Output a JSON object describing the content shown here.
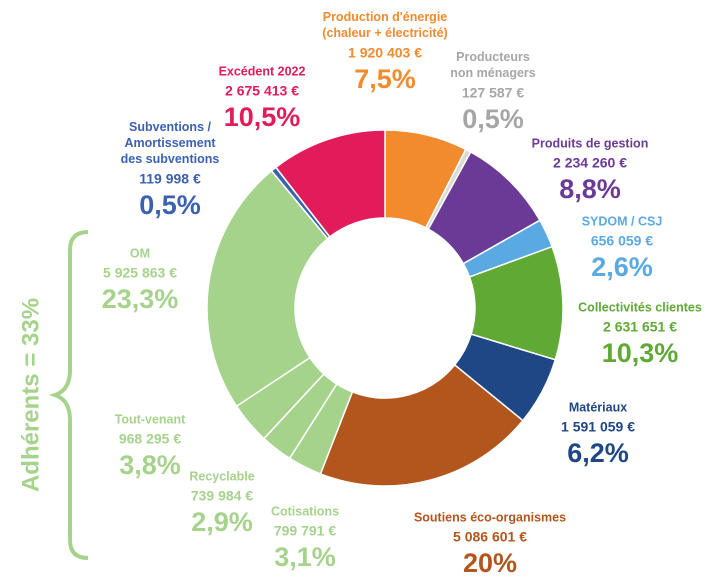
{
  "chart_data": {
    "type": "donut",
    "categories": [
      "Production d'énergie\n(chaleur + électricité)",
      "Producteurs\nnon ménagers",
      "Produits de gestion",
      "SYDOM / CSJ",
      "Collectivités clientes",
      "Matériaux",
      "Soutiens éco-organismes",
      "Cotisations",
      "Recyclable",
      "Tout-venant",
      "OM",
      "Subventions /\nAmortissement\ndes subventions",
      "Excédent 2022"
    ],
    "amounts": [
      "1 920 403 €",
      "127 587 €",
      "2 234 260 €",
      "656 059 €",
      "2 631 651 €",
      "1 591 059 €",
      "5 086 601 €",
      "799 791 €",
      "739 984 €",
      "968 295 €",
      "5 925 863 €",
      "119 998 €",
      "2 675 413 €"
    ],
    "values": [
      7.5,
      0.5,
      8.8,
      2.6,
      10.3,
      6.2,
      20,
      3.1,
      2.9,
      3.8,
      23.3,
      0.5,
      10.5
    ],
    "value_labels": [
      "7,5%",
      "0,5%",
      "8,8%",
      "2,6%",
      "10,3%",
      "6,2%",
      "20%",
      "3,1%",
      "2,9%",
      "3,8%",
      "23,3%",
      "0,5%",
      "10,5%"
    ],
    "colors": [
      "#f28a2e",
      "#d9d9d9",
      "#6b3a97",
      "#5aa9e2",
      "#5fa934",
      "#1f4785",
      "#b3561d",
      "#a6d38c",
      "#a6d38c",
      "#a6d38c",
      "#a6d38c",
      "#3a62b0",
      "#e21b5a"
    ],
    "label_colors": [
      "#f28a2e",
      "#a6a6a6",
      "#6b3a97",
      "#5aa9e2",
      "#5fa934",
      "#1f4785",
      "#b3561d",
      "#a6d38c",
      "#a6d38c",
      "#a6d38c",
      "#a6d38c",
      "#3a62b0",
      "#e21b5a"
    ],
    "annotation": "Adhérents = 33%"
  }
}
